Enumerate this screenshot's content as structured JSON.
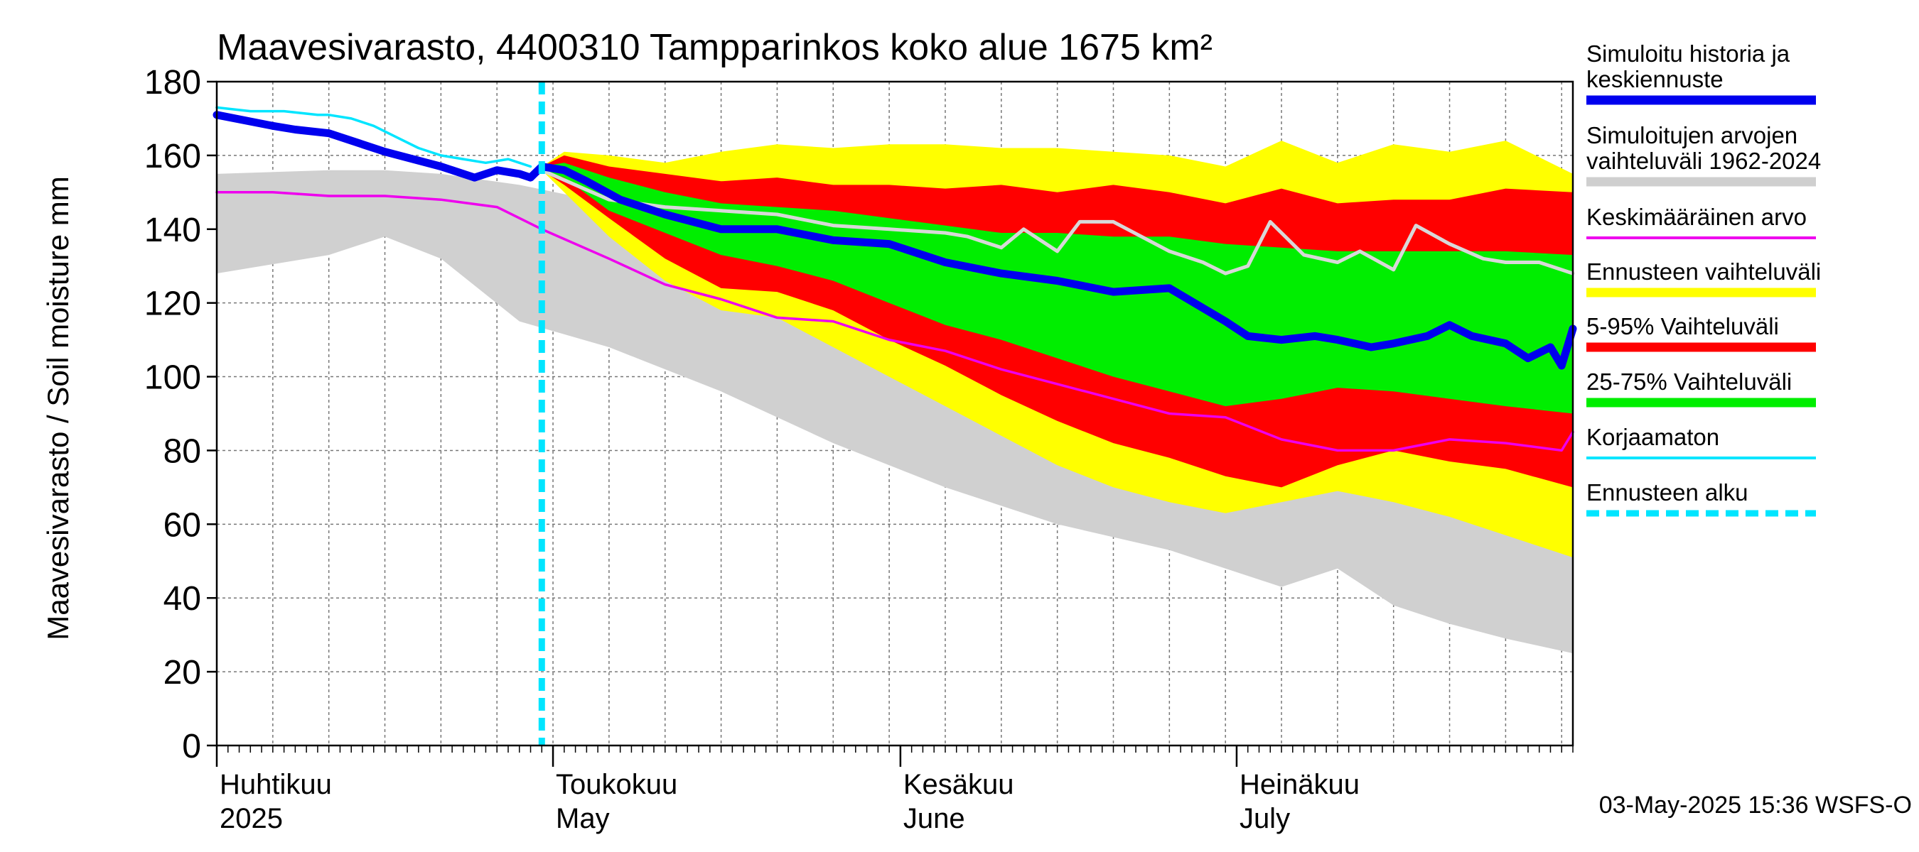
{
  "chart_data": {
    "type": "area",
    "title": "Maavesivarasto, 4400310 Tampparinkos koko alue 1675 km²",
    "ylabel": "Maavesivarasto / Soil moisture   mm",
    "ylim": [
      0,
      180
    ],
    "yticks": [
      0,
      20,
      40,
      60,
      80,
      100,
      120,
      140,
      160,
      180
    ],
    "x_start": "2025-04-01",
    "x_end": "2025-07-31",
    "forecast_start_day": 29,
    "grid": true,
    "month_labels": [
      {
        "fi": "Huhtikuu",
        "en": "2025",
        "day": 0
      },
      {
        "fi": "Toukokuu",
        "en": "May",
        "day": 30
      },
      {
        "fi": "Kesäkuu",
        "en": "June",
        "day": 61
      },
      {
        "fi": "Heinäkuu",
        "en": "July",
        "day": 91
      }
    ],
    "footer": "03-May-2025 15:36 WSFS-O",
    "legend": [
      {
        "label": "Simuloitu historia ja keskiennuste",
        "color": "#0000ee",
        "style": "thick"
      },
      {
        "label": "Simuloitujen arvojen vaihteluväli 1962-2024",
        "color": "#cfcfcf",
        "style": "thick"
      },
      {
        "label": "Keskimääräinen arvo",
        "color": "#ee00ee",
        "style": "thin"
      },
      {
        "label": "Ennusteen vaihteluväli",
        "color": "#ffff00",
        "style": "thick"
      },
      {
        "label": "5-95% Vaihteluväli",
        "color": "#ff0000",
        "style": "thick"
      },
      {
        "label": "25-75% Vaihteluväli",
        "color": "#00ee00",
        "style": "thick"
      },
      {
        "label": "Korjaamaton",
        "color": "#00e5ff",
        "style": "thin"
      },
      {
        "label": "Ennusteen alku",
        "color": "#00e5ff",
        "style": "dashed"
      }
    ],
    "series": {
      "hist_range": {
        "days": [
          0,
          10,
          15,
          20,
          27,
          35,
          45,
          55,
          65,
          75,
          85,
          95,
          100,
          105,
          110,
          115,
          121
        ],
        "upper": [
          155,
          156,
          156,
          155,
          152,
          147,
          137,
          127,
          118,
          110,
          102,
          93,
          87,
          81,
          76,
          73,
          71
        ],
        "lower": [
          128,
          133,
          138,
          132,
          115,
          108,
          96,
          82,
          70,
          60,
          53,
          43,
          48,
          38,
          33,
          29,
          25
        ]
      },
      "fc_yellow": {
        "days": [
          29,
          31,
          35,
          40,
          45,
          50,
          55,
          60,
          65,
          70,
          75,
          80,
          85,
          90,
          95,
          100,
          105,
          110,
          115,
          121
        ],
        "upper": [
          157,
          161,
          160,
          158,
          161,
          163,
          162,
          163,
          163,
          162,
          162,
          161,
          160,
          157,
          164,
          158,
          163,
          161,
          164,
          155
        ],
        "lower": [
          156,
          150,
          138,
          126,
          118,
          116,
          108,
          100,
          92,
          84,
          76,
          70,
          66,
          63,
          66,
          69,
          66,
          62,
          57,
          51
        ]
      },
      "fc_red": {
        "days": [
          29,
          31,
          35,
          40,
          45,
          50,
          55,
          60,
          65,
          70,
          75,
          80,
          85,
          90,
          95,
          100,
          105,
          110,
          115,
          121
        ],
        "upper": [
          157,
          160,
          157,
          155,
          153,
          154,
          152,
          152,
          151,
          152,
          150,
          152,
          150,
          147,
          151,
          147,
          148,
          148,
          151,
          150
        ],
        "lower": [
          156,
          152,
          143,
          132,
          124,
          123,
          118,
          110,
          103,
          95,
          88,
          82,
          78,
          73,
          70,
          76,
          80,
          77,
          75,
          70
        ]
      },
      "fc_green": {
        "days": [
          29,
          31,
          35,
          40,
          45,
          50,
          55,
          60,
          65,
          70,
          75,
          80,
          85,
          90,
          95,
          100,
          105,
          110,
          115,
          121
        ],
        "upper": [
          157,
          158,
          154,
          150,
          147,
          146,
          145,
          143,
          141,
          139,
          139,
          138,
          138,
          136,
          135,
          134,
          134,
          134,
          134,
          133
        ],
        "lower": [
          156,
          154,
          145,
          139,
          133,
          130,
          126,
          120,
          114,
          110,
          105,
          100,
          96,
          92,
          94,
          97,
          96,
          94,
          92,
          90
        ]
      },
      "corrected_unadjusted": {
        "days": [
          0,
          3,
          6,
          9,
          10,
          12,
          14,
          16,
          18,
          20,
          22,
          24,
          26,
          27,
          28
        ],
        "values": [
          173,
          172,
          172,
          171,
          171,
          170,
          168,
          165,
          162,
          160,
          159,
          158,
          159,
          158,
          157
        ]
      },
      "average": {
        "days": [
          0,
          5,
          10,
          15,
          20,
          25,
          29,
          35,
          40,
          45,
          50,
          55,
          60,
          65,
          70,
          75,
          80,
          85,
          90,
          95,
          100,
          105,
          110,
          115,
          120,
          121
        ],
        "values": [
          150,
          150,
          149,
          149,
          148,
          146,
          140,
          132,
          125,
          121,
          116,
          115,
          110,
          107,
          102,
          98,
          94,
          90,
          89,
          83,
          80,
          80,
          83,
          82,
          80,
          85
        ]
      },
      "historical_2024_gray": {
        "days": [
          29,
          35,
          40,
          45,
          50,
          55,
          60,
          65,
          67,
          70,
          72,
          75,
          77,
          80,
          85,
          88,
          90,
          92,
          94,
          97,
          100,
          102,
          105,
          107,
          110,
          113,
          115,
          118,
          121
        ],
        "values": [
          156,
          148,
          146,
          145,
          144,
          141,
          140,
          139,
          138,
          135,
          140,
          134,
          142,
          142,
          134,
          131,
          128,
          130,
          142,
          133,
          131,
          134,
          129,
          141,
          136,
          132,
          131,
          131,
          128
        ]
      },
      "median_forecast": {
        "days": [
          0,
          5,
          7,
          10,
          15,
          20,
          23,
          25,
          27,
          28,
          29,
          31,
          33,
          36,
          40,
          45,
          50,
          55,
          60,
          65,
          70,
          75,
          80,
          85,
          90,
          92,
          95,
          98,
          100,
          103,
          105,
          108,
          110,
          112,
          115,
          117,
          119,
          120,
          121
        ],
        "values": [
          171,
          168,
          167,
          166,
          161,
          157,
          154,
          156,
          155,
          154,
          157,
          156,
          153,
          148,
          144,
          140,
          140,
          137,
          136,
          131,
          128,
          126,
          123,
          124,
          115,
          111,
          110,
          111,
          110,
          108,
          109,
          111,
          114,
          111,
          109,
          105,
          108,
          103,
          113
        ]
      }
    }
  }
}
